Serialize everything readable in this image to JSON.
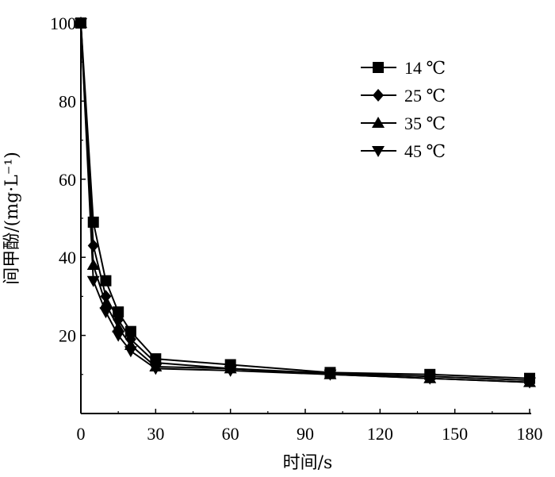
{
  "chart_data": {
    "type": "line",
    "title": "",
    "xlabel": "时间/s",
    "ylabel": "间甲酚/(mg·L⁻¹)",
    "xlim": [
      0,
      180
    ],
    "ylim": [
      0,
      100
    ],
    "x_ticks": [
      "0",
      "30",
      "60",
      "90",
      "120",
      "150",
      "180"
    ],
    "y_ticks": [
      "20",
      "40",
      "60",
      "80",
      "100"
    ],
    "grid": false,
    "legend_position": "top-right",
    "x": [
      0,
      5,
      10,
      15,
      20,
      30,
      60,
      100,
      140,
      180
    ],
    "series": [
      {
        "name": "14 ℃",
        "marker": "square",
        "values": [
          100,
          49,
          34,
          26,
          21,
          14,
          12.5,
          10.5,
          10,
          9
        ]
      },
      {
        "name": "25 ℃",
        "marker": "diamond",
        "values": [
          100,
          43,
          30,
          24,
          19,
          13,
          11.5,
          10.3,
          9.5,
          8.5
        ]
      },
      {
        "name": "35 ℃",
        "marker": "triangle-up",
        "values": [
          100,
          38,
          28,
          22,
          17.5,
          12,
          11.5,
          10,
          9,
          8
        ]
      },
      {
        "name": "45 ℃",
        "marker": "triangle-down",
        "values": [
          100,
          34,
          26,
          20,
          16,
          11.5,
          11,
          10,
          9,
          8
        ]
      }
    ]
  }
}
